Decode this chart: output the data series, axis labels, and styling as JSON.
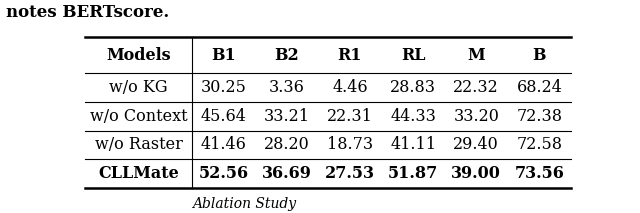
{
  "header": [
    "Models",
    "B1",
    "B2",
    "R1",
    "RL",
    "M",
    "B"
  ],
  "rows": [
    [
      "w/o KG",
      "30.25",
      "3.36",
      "4.46",
      "28.83",
      "22.32",
      "68.24"
    ],
    [
      "w/o Context",
      "45.64",
      "33.21",
      "22.31",
      "44.33",
      "33.20",
      "72.38"
    ],
    [
      "w/o Raster",
      "41.46",
      "28.20",
      "18.73",
      "41.11",
      "29.40",
      "72.58"
    ],
    [
      "CLLMate",
      "52.56",
      "36.69",
      "27.53",
      "51.87",
      "39.00",
      "73.56"
    ]
  ],
  "bold_header": true,
  "bold_last_row": true,
  "background_color": "#ffffff",
  "top_text": "notes BERTscore.",
  "bottom_text": "Ablation Study",
  "font_size": 11.5
}
